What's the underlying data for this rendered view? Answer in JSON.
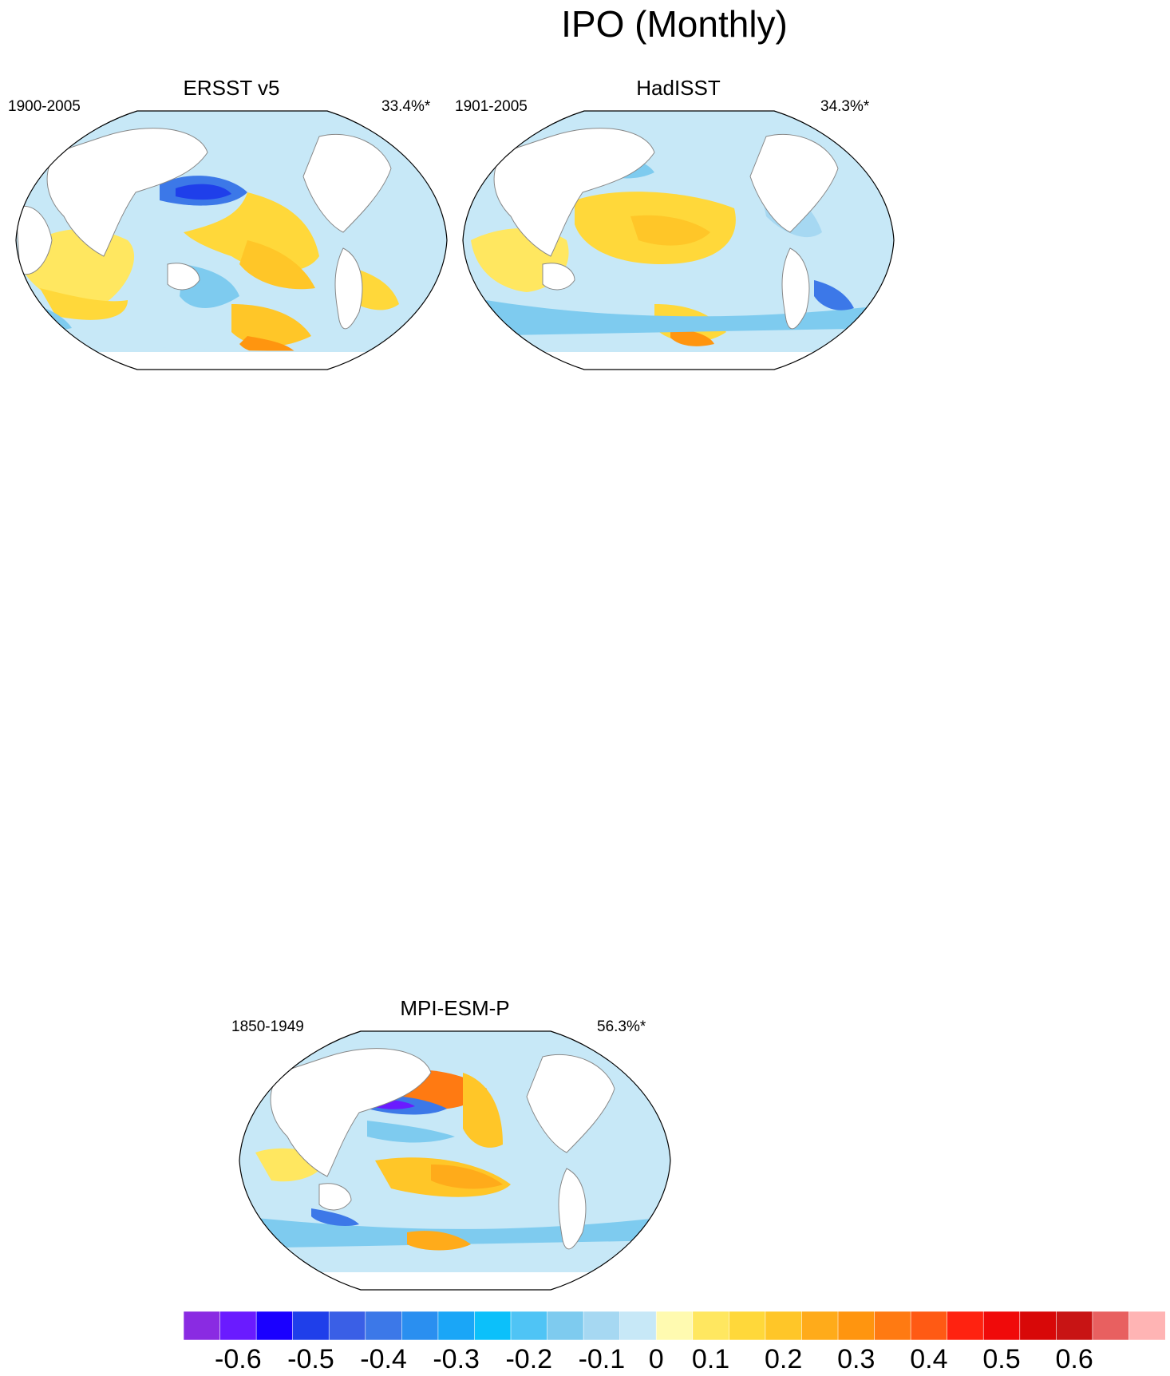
{
  "title": "IPO (Monthly)",
  "panels": [
    {
      "id": "ersst",
      "name": "ERSST v5",
      "period": "1900-2005",
      "variance": "33.4%*"
    },
    {
      "id": "hadisst",
      "name": "HadISST",
      "period": "1901-2005",
      "variance": "34.3%*"
    },
    {
      "id": "mpi",
      "name": "MPI-ESM-P",
      "period": "1850-1949",
      "variance": "56.3%*"
    }
  ],
  "colorbar": {
    "colors": [
      "#8a2be2",
      "#6a1bff",
      "#1a00ff",
      "#1f3fea",
      "#3a5fe6",
      "#3c78e8",
      "#2a8ff0",
      "#1aa6f7",
      "#0cc0fa",
      "#4fc4f5",
      "#7ecbef",
      "#a6d8f2",
      "#c7e8f7",
      "#fffab0",
      "#ffe760",
      "#ffd83a",
      "#ffc628",
      "#ffab1a",
      "#ff950f",
      "#ff7a12",
      "#ff5a14",
      "#ff2210",
      "#f00a0a",
      "#d80808",
      "#c81414",
      "#e86060",
      "#ffb4b4"
    ],
    "labels": [
      "-0.6",
      "-0.5",
      "-0.4",
      "-0.3",
      "-0.2",
      "-0.1",
      "0",
      "0.1",
      "0.2",
      "0.3",
      "0.4",
      "0.5",
      "0.6"
    ]
  }
}
